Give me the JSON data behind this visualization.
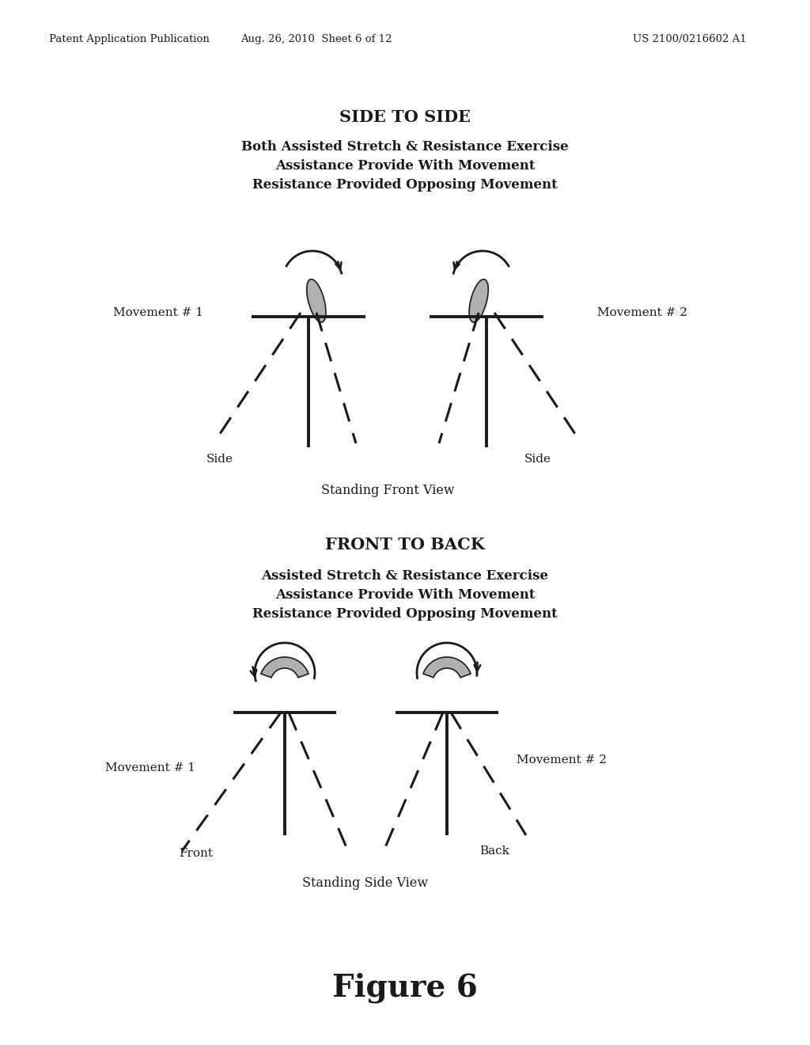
{
  "header_left": "Patent Application Publication",
  "header_mid": "Aug. 26, 2010  Sheet 6 of 12",
  "header_right": "US 2100/0216602 A1",
  "section1_title": "SIDE TO SIDE",
  "section1_line1": "Both Assisted Stretch & Resistance Exercise",
  "section1_line2": "Assistance Provide With Movement",
  "section1_line3": "Resistance Provided Opposing Movement",
  "section2_title": "FRONT TO BACK",
  "section2_line1": "Assisted Stretch & Resistance Exercise",
  "section2_line2": "Assistance Provide With Movement",
  "section2_line3": "Resistance Provided Opposing Movement",
  "fig_label": "Figure 6",
  "label_move1_s1": "Movement # 1",
  "label_move2_s1": "Movement # 2",
  "label_side_left": "Side",
  "label_side_right": "Side",
  "label_front_view": "Standing Front View",
  "label_move1_s2": "Movement # 1",
  "label_move2_s2": "Movement # 2",
  "label_front": "Front",
  "label_back": "Back",
  "label_side_view": "Standing Side View",
  "bg_color": "#ffffff",
  "line_color": "#1a1a1a",
  "gray_fill": "#b0b0b0"
}
